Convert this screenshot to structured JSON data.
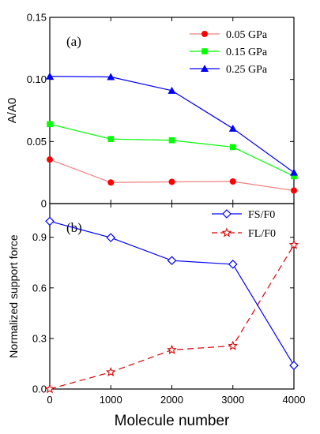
{
  "chart_data": [
    {
      "type": "line",
      "panel_label": "(a)",
      "ylabel": "A/A0",
      "xlim": [
        0,
        4000
      ],
      "ylim": [
        0,
        0.15
      ],
      "yticks": [
        0,
        0.05,
        0.1,
        0.15
      ],
      "ytick_labels": [
        "0",
        "0.05",
        "0.10",
        "0.15"
      ],
      "x": [
        0,
        1000,
        2000,
        3000,
        4000
      ],
      "legend_position": "top-right",
      "series": [
        {
          "name": "0.05 GPa",
          "color": "#ff0000",
          "line_color": "#f08080",
          "marker": "circle",
          "dash": "solid",
          "values": [
            0.0355,
            0.017,
            0.0175,
            0.0178,
            0.0105
          ]
        },
        {
          "name": "0.15 GPa",
          "color": "#00ff00",
          "line_color": "#00ff00",
          "marker": "square",
          "dash": "solid",
          "values": [
            0.064,
            0.052,
            0.051,
            0.0455,
            0.022
          ]
        },
        {
          "name": "0.25 GPa",
          "color": "#0000ff",
          "line_color": "#0000ff",
          "marker": "triangle",
          "dash": "solid",
          "values": [
            0.1025,
            0.102,
            0.091,
            0.0605,
            0.025
          ]
        }
      ]
    },
    {
      "type": "line",
      "panel_label": "(b)",
      "xlabel": "Molecule number",
      "ylabel": "Normalized support force",
      "xlim": [
        0,
        4000
      ],
      "ylim": [
        0,
        1.1
      ],
      "yticks": [
        0,
        0.3,
        0.6,
        0.9
      ],
      "ytick_labels": [
        "0.0",
        "0.3",
        "0.6",
        "0.9"
      ],
      "x": [
        0,
        1000,
        2000,
        3000,
        4000
      ],
      "xticks": [
        0,
        1000,
        2000,
        3000,
        4000
      ],
      "xtick_labels": [
        "0",
        "1000",
        "2000",
        "3000",
        "4000"
      ],
      "legend_position": "top-right",
      "series": [
        {
          "name": "FS/F0",
          "color": "#0000ff",
          "line_color": "#0000ff",
          "marker": "diamond-open",
          "dash": "solid",
          "values": [
            0.995,
            0.898,
            0.762,
            0.74,
            0.14
          ]
        },
        {
          "name": "FL/F0",
          "color": "#dd0000",
          "line_color": "#dd0000",
          "marker": "star-open",
          "dash": "dashed",
          "values": [
            0.0,
            0.1,
            0.232,
            0.256,
            0.855
          ]
        }
      ]
    }
  ]
}
